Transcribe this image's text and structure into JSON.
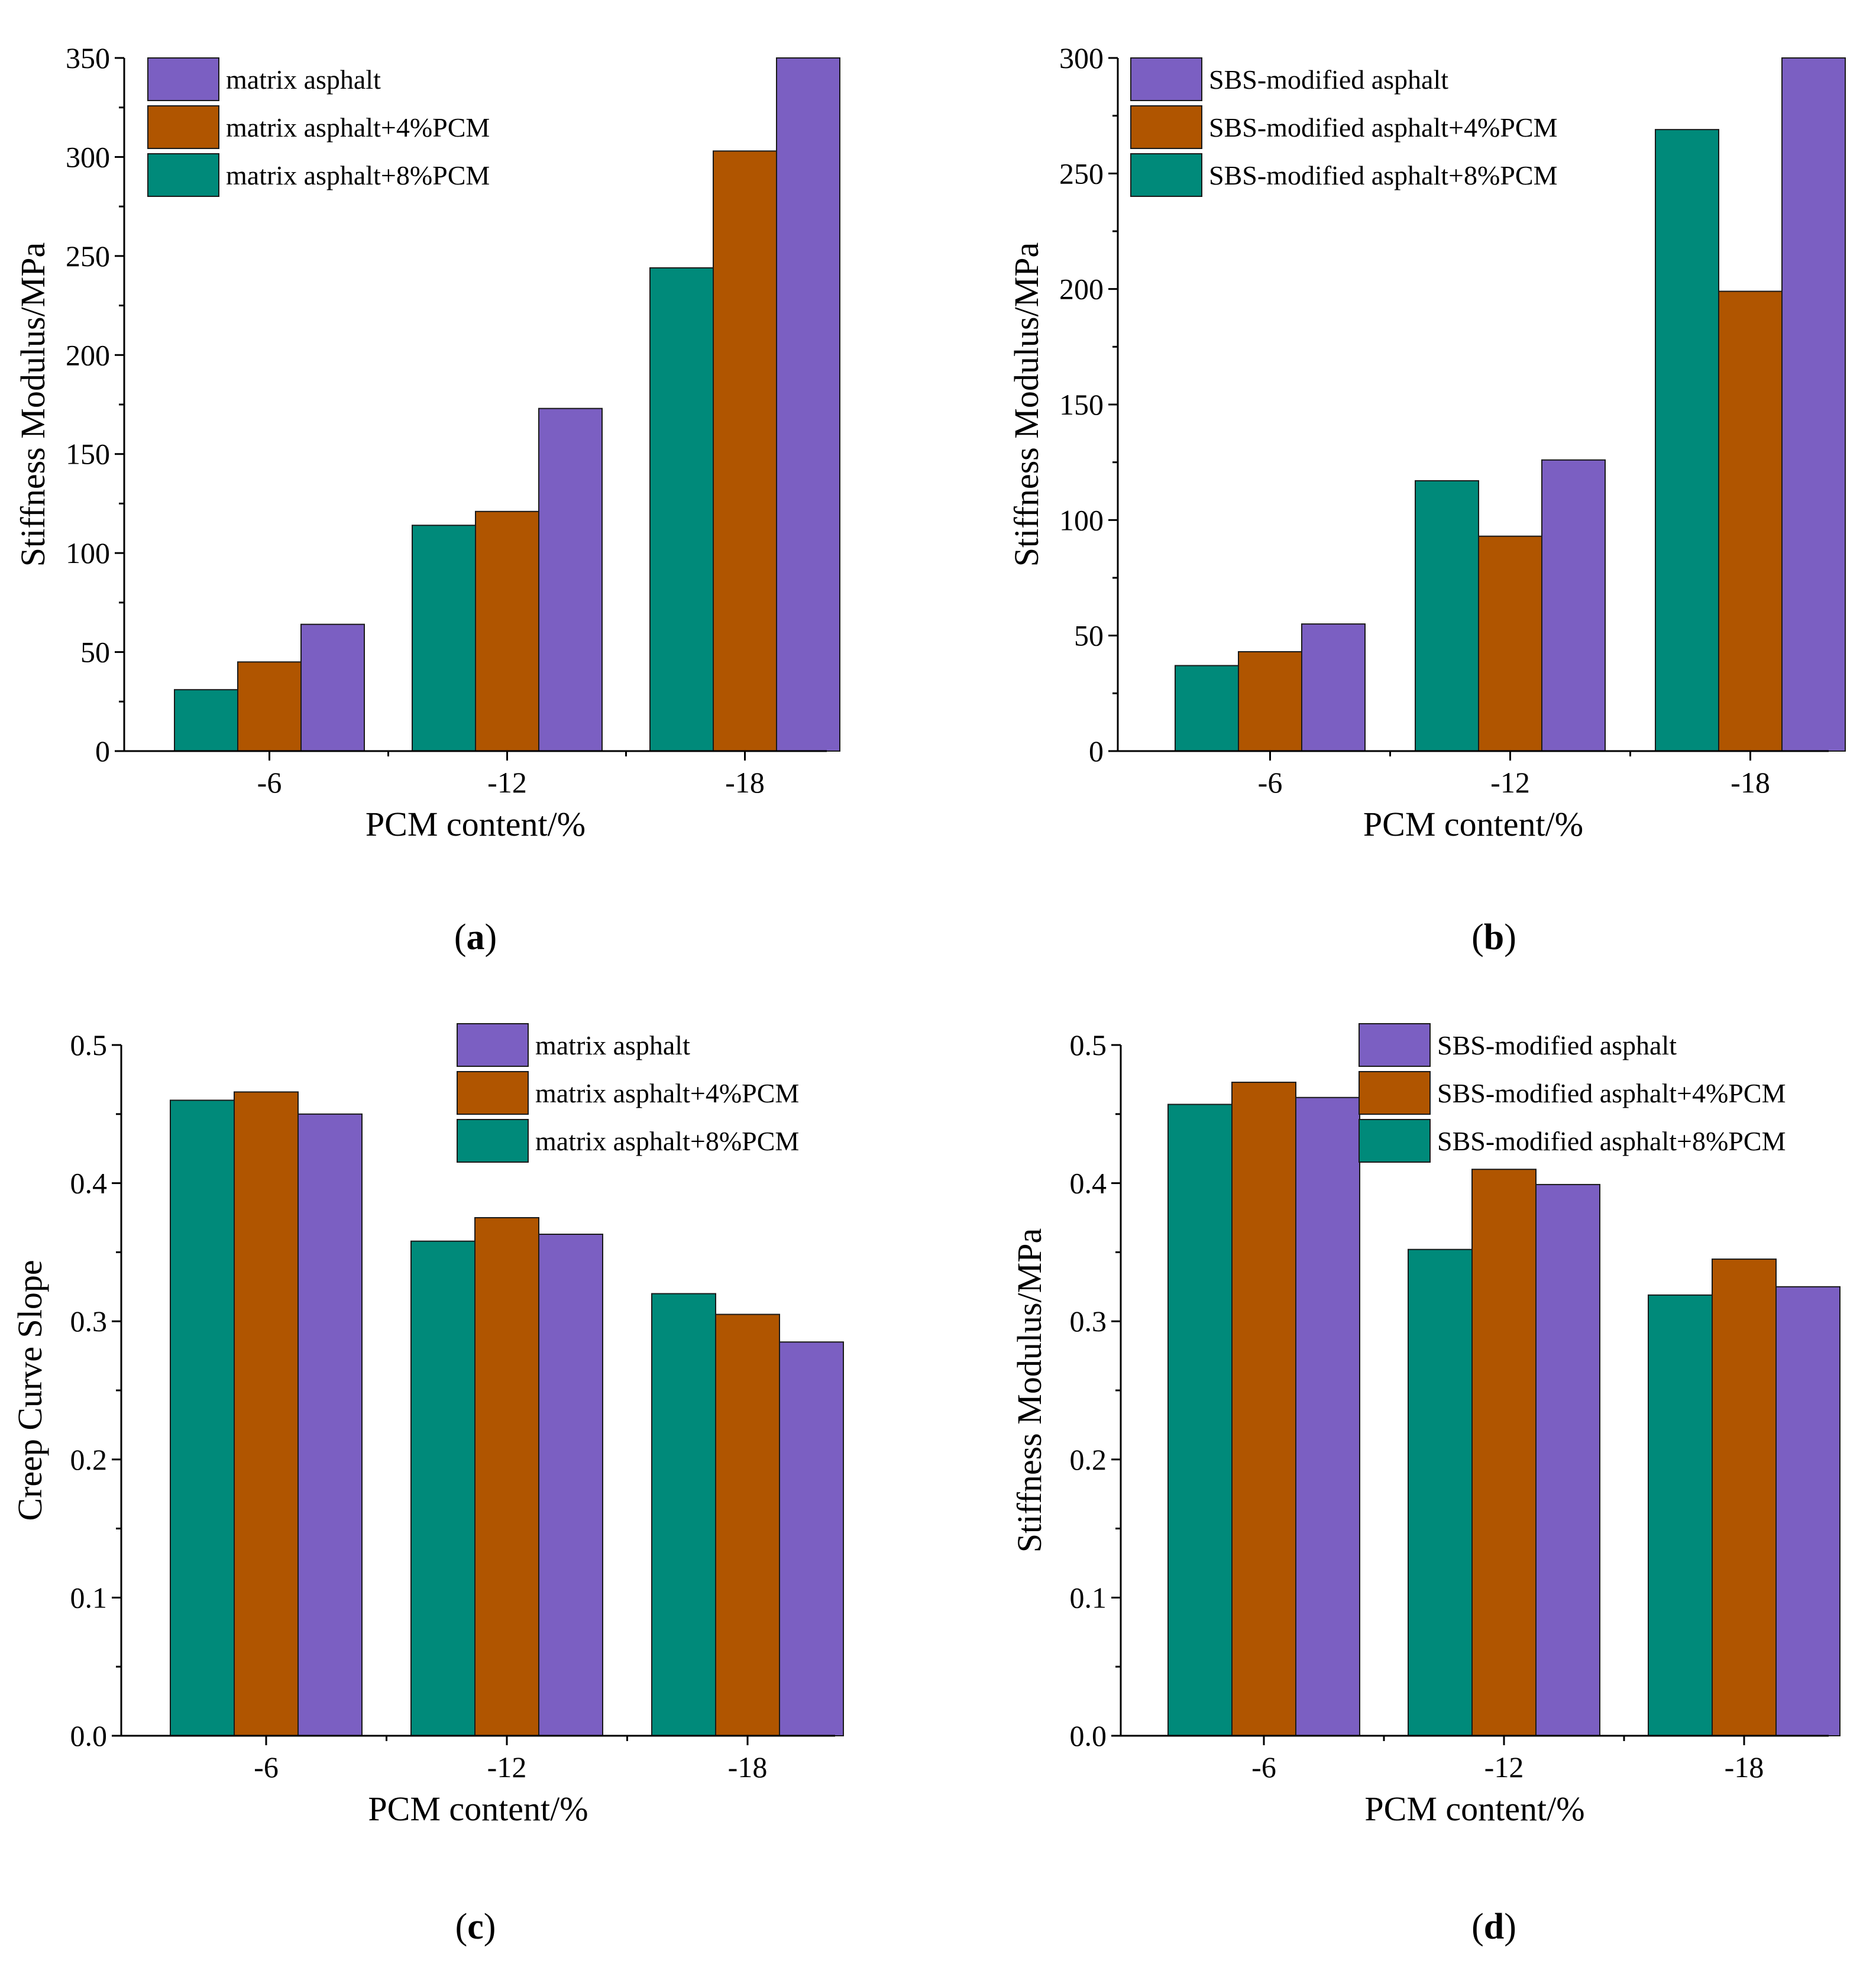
{
  "colors": {
    "matrix": "#7B5FC2",
    "plus4": "#B05500",
    "plus8": "#008A7A",
    "axis": "#000000"
  },
  "chart_data": [
    {
      "panel": "(a)",
      "caption_open": "(",
      "caption_letter": "a",
      "caption_close": ")",
      "type": "bar",
      "title": "",
      "xlabel": "PCM content/%",
      "ylabel": "Stiffness Modulus/MPa",
      "categories": [
        "-6",
        "-12",
        "-18"
      ],
      "ylim": [
        0,
        350
      ],
      "yticks": [
        "0",
        "50",
        "100",
        "150",
        "200",
        "250",
        "300",
        "350"
      ],
      "legend_position": "top-left",
      "grid": false,
      "series": [
        {
          "name": "matrix asphalt+8%PCM",
          "color_key": "plus8",
          "values": [
            31,
            114,
            244
          ]
        },
        {
          "name": "matrix asphalt+4%PCM",
          "color_key": "plus4",
          "values": [
            45,
            121,
            303
          ]
        },
        {
          "name": "matrix asphalt",
          "color_key": "matrix",
          "values": [
            64,
            173,
            350
          ]
        }
      ],
      "legend_order": [
        2,
        1,
        0
      ]
    },
    {
      "panel": "(b)",
      "caption_open": "(",
      "caption_letter": "b",
      "caption_close": ")",
      "type": "bar",
      "title": "",
      "xlabel": "PCM content/%",
      "ylabel": "Stiffness Modulus/MPa",
      "categories": [
        "-6",
        "-12",
        "-18"
      ],
      "ylim": [
        0,
        300
      ],
      "yticks": [
        "0",
        "50",
        "100",
        "150",
        "200",
        "250",
        "300"
      ],
      "legend_position": "top-left",
      "grid": false,
      "series": [
        {
          "name": "SBS-modified asphalt+8%PCM",
          "color_key": "plus8",
          "values": [
            37,
            117,
            269
          ]
        },
        {
          "name": "SBS-modified asphalt+4%PCM",
          "color_key": "plus4",
          "values": [
            43,
            93,
            199
          ]
        },
        {
          "name": "SBS-modified asphalt",
          "color_key": "matrix",
          "values": [
            55,
            126,
            300
          ]
        }
      ],
      "legend_order": [
        2,
        1,
        0
      ]
    },
    {
      "panel": "(c)",
      "caption_open": "(",
      "caption_letter": "c",
      "caption_close": ")",
      "type": "bar",
      "title": "",
      "xlabel": "PCM content/%",
      "ylabel": "Creep Curve Slope",
      "categories": [
        "-6",
        "-12",
        "-18"
      ],
      "ylim": [
        0,
        0.5
      ],
      "yticks": [
        "0.0",
        "0.1",
        "0.2",
        "0.3",
        "0.4",
        "0.5"
      ],
      "legend_position": "top-right",
      "grid": false,
      "series": [
        {
          "name": "matrix asphalt+8%PCM",
          "color_key": "plus8",
          "values": [
            0.46,
            0.358,
            0.32
          ]
        },
        {
          "name": "matrix asphalt+4%PCM",
          "color_key": "plus4",
          "values": [
            0.466,
            0.375,
            0.305
          ]
        },
        {
          "name": "matrix asphalt",
          "color_key": "matrix",
          "values": [
            0.45,
            0.363,
            0.285
          ]
        }
      ],
      "legend_order": [
        2,
        1,
        0
      ]
    },
    {
      "panel": "(d)",
      "caption_open": "(",
      "caption_letter": "d",
      "caption_close": ")",
      "type": "bar",
      "title": "",
      "xlabel": "PCM content/%",
      "ylabel": "Stiffness Modulus/MPa",
      "categories": [
        "-6",
        "-12",
        "-18"
      ],
      "ylim": [
        0,
        0.5
      ],
      "yticks": [
        "0.0",
        "0.1",
        "0.2",
        "0.3",
        "0.4",
        "0.5"
      ],
      "legend_position": "top-right",
      "grid": false,
      "series": [
        {
          "name": "SBS-modified asphalt+8%PCM",
          "color_key": "plus8",
          "values": [
            0.457,
            0.352,
            0.319
          ]
        },
        {
          "name": "SBS-modified asphalt+4%PCM",
          "color_key": "plus4",
          "values": [
            0.473,
            0.41,
            0.345
          ]
        },
        {
          "name": "SBS-modified asphalt",
          "color_key": "matrix",
          "values": [
            0.462,
            0.399,
            0.325
          ]
        }
      ],
      "legend_order": [
        2,
        1,
        0
      ]
    }
  ]
}
